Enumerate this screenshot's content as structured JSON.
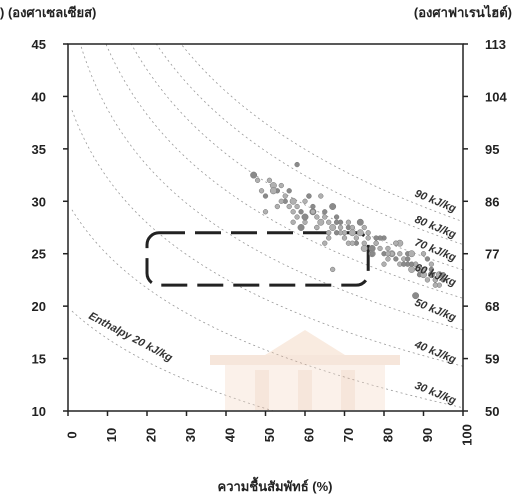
{
  "chart_data": {
    "type": "scatter",
    "title": "",
    "xlabel": "ความชื้นสัมพัทธ์ (%)",
    "ylabel_left": ") (องศาเซลเซียส)",
    "ylabel_right": "(องศาฟาเรนไฮต์)",
    "xlim": [
      0,
      100
    ],
    "ylim": [
      10,
      45
    ],
    "x_ticks": [
      "0",
      "10",
      "20",
      "30",
      "40",
      "50",
      "60",
      "70",
      "80",
      "90",
      "100"
    ],
    "y_ticks_left": [
      "10",
      "15",
      "20",
      "25",
      "30",
      "35",
      "40",
      "45"
    ],
    "y_ticks_right": [
      "50",
      "59",
      "68",
      "77",
      "86",
      "95",
      "104",
      "113"
    ],
    "grid": false,
    "enthalpy_labels": [
      {
        "text": "Enthalpy 20 kJ/kg",
        "value": 20
      },
      {
        "text": "30 kJ/kg",
        "value": 30
      },
      {
        "text": "40 kJ/kg",
        "value": 40
      },
      {
        "text": "50 kJ/kg",
        "value": 50
      },
      {
        "text": "60 kJ/kg",
        "value": 60
      },
      {
        "text": "70 kJ/kg",
        "value": 70
      },
      {
        "text": "80 kJ/kg",
        "value": 80
      },
      {
        "text": "90 kJ/kg",
        "value": 90
      }
    ],
    "comfort_zone": {
      "rh": [
        20,
        76
      ],
      "temp": [
        22,
        27
      ]
    },
    "series": [
      {
        "x": [
          47,
          48,
          49,
          50,
          51,
          52,
          53,
          54,
          55,
          56,
          57,
          58,
          59,
          60,
          61,
          62,
          63,
          64,
          65,
          66,
          67,
          68,
          69,
          70,
          71,
          72,
          73,
          74,
          75,
          76,
          77,
          78,
          79,
          80,
          81,
          82,
          83,
          84,
          85,
          86,
          87,
          88,
          89,
          90,
          91,
          92,
          93,
          94,
          95,
          50,
          52,
          55,
          57,
          60,
          62,
          64,
          66,
          68,
          70,
          72,
          74,
          76,
          78,
          80,
          82,
          84,
          86,
          88,
          90,
          92,
          94,
          58,
          61,
          63,
          65,
          67,
          69,
          71,
          73,
          75,
          77,
          79,
          81,
          83,
          85,
          87,
          89,
          91,
          93,
          56,
          59,
          62,
          65,
          68,
          71,
          74,
          77,
          80,
          83,
          86,
          89,
          92,
          95,
          54,
          57,
          60,
          63,
          66,
          69,
          72,
          75,
          78,
          81,
          84,
          87,
          90,
          93,
          58,
          53,
          64,
          88,
          67
        ],
        "y": [
          32.5,
          32,
          31,
          30.5,
          32,
          31.5,
          31,
          31.5,
          30.5,
          31,
          30,
          29.5,
          29,
          30,
          30.5,
          29,
          28.5,
          28,
          29,
          28,
          27.5,
          28,
          27.5,
          27,
          27.5,
          27,
          26.5,
          27,
          26,
          26.5,
          25.5,
          26,
          25.5,
          25,
          25.5,
          25,
          24.5,
          24,
          24.5,
          24,
          23.5,
          24,
          23,
          23.5,
          22.5,
          23,
          22.5,
          22,
          22.5,
          29,
          31,
          30,
          29,
          28,
          29.5,
          28,
          27,
          28.5,
          26.5,
          27.5,
          28,
          27,
          26,
          26.5,
          25,
          26,
          25,
          24,
          25,
          23.5,
          23,
          28.5,
          30.5,
          27.5,
          28.5,
          29.5,
          27,
          28,
          26,
          27.5,
          25,
          26.5,
          24.5,
          26,
          24,
          25,
          23.5,
          24.5,
          22.5,
          29.5,
          27.5,
          29,
          26,
          27,
          26,
          27,
          25,
          24,
          26,
          24.5,
          23.5,
          24,
          23,
          30,
          28,
          28.5,
          27.5,
          26.5,
          28,
          26,
          25.5,
          26.5,
          25,
          25,
          24,
          23,
          22,
          33.5,
          29.5,
          30.5,
          21,
          23.5
        ]
      }
    ]
  }
}
